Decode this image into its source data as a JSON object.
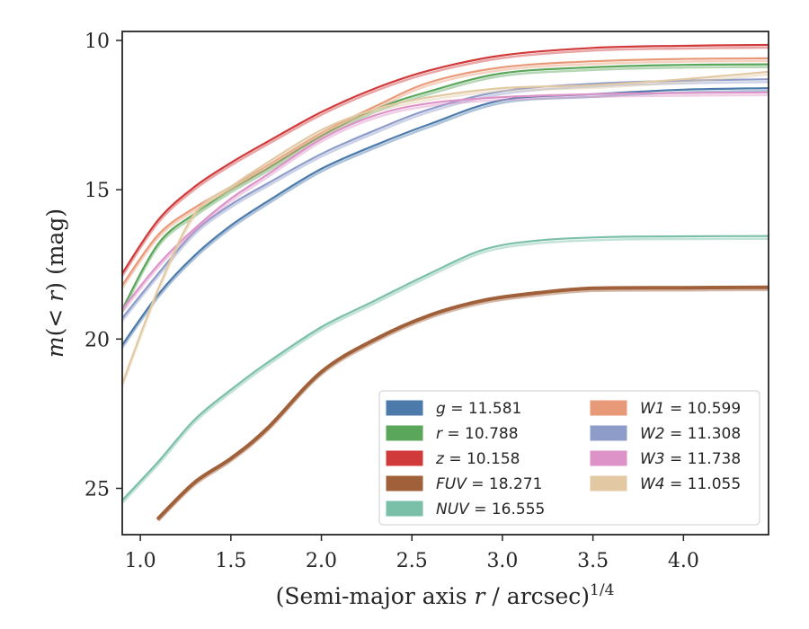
{
  "chart_data": {
    "type": "line",
    "xlabel": "(Semi-major axis r / arcsec)^1/4",
    "ylabel": "m(< r) (mag)",
    "xlim": [
      0.9,
      4.47
    ],
    "ylim": [
      26.55,
      9.7
    ],
    "y_inverted": true,
    "x_ticks": [
      "1.0",
      "1.5",
      "2.0",
      "2.5",
      "3.0",
      "3.5",
      "4.0"
    ],
    "x_tick_values": [
      1.0,
      1.5,
      2.0,
      2.5,
      3.0,
      3.5,
      4.0
    ],
    "y_ticks": [
      "10",
      "15",
      "20",
      "25"
    ],
    "y_tick_values": [
      10,
      15,
      20,
      25
    ],
    "grid": false,
    "legend_position": "lower-right",
    "legend_columns": 2,
    "series": [
      {
        "name": "g = 11.581",
        "label_var": "g",
        "label_value": "11.581",
        "color": "#4c7bab",
        "x": [
          0.9,
          1.1,
          1.3,
          1.5,
          1.7,
          2.0,
          2.3,
          2.6,
          3.0,
          3.5,
          4.0,
          4.47
        ],
        "y": [
          20.2,
          18.5,
          17.2,
          16.2,
          15.4,
          14.3,
          13.5,
          12.8,
          12.0,
          11.8,
          11.65,
          11.6
        ]
      },
      {
        "name": "r = 10.788",
        "label_var": "r",
        "label_value": "10.788",
        "color": "#5aa65a",
        "x": [
          0.9,
          1.1,
          1.3,
          1.5,
          1.7,
          2.0,
          2.3,
          2.6,
          3.0,
          3.5,
          4.0,
          4.47
        ],
        "y": [
          19.0,
          16.8,
          15.8,
          15.0,
          14.3,
          13.2,
          12.3,
          11.7,
          11.1,
          10.9,
          10.82,
          10.8
        ]
      },
      {
        "name": "z = 10.158",
        "label_var": "z",
        "label_value": "10.158",
        "color": "#d03a3a",
        "x": [
          0.9,
          1.1,
          1.3,
          1.5,
          1.7,
          2.0,
          2.3,
          2.6,
          3.0,
          3.5,
          4.0,
          4.47
        ],
        "y": [
          17.8,
          16.0,
          14.9,
          14.1,
          13.4,
          12.4,
          11.6,
          11.0,
          10.5,
          10.25,
          10.18,
          10.15
        ]
      },
      {
        "name": "FUV = 18.271",
        "label_var": "FUV",
        "label_value": "18.271",
        "color": "#a0603a",
        "x": [
          1.1,
          1.3,
          1.5,
          1.7,
          2.0,
          2.3,
          2.6,
          2.9,
          3.2,
          3.5,
          4.0,
          4.47
        ],
        "y": [
          26.0,
          24.8,
          24.0,
          23.0,
          21.1,
          20.0,
          19.2,
          18.7,
          18.45,
          18.3,
          18.28,
          18.27
        ]
      },
      {
        "name": "NUV = 16.555",
        "label_var": "NUV",
        "label_value": "16.555",
        "color": "#7abfa8",
        "x": [
          0.9,
          1.1,
          1.3,
          1.5,
          1.7,
          2.0,
          2.3,
          2.6,
          2.9,
          3.2,
          3.6,
          4.0,
          4.47
        ],
        "y": [
          25.4,
          24.1,
          22.7,
          21.7,
          20.8,
          19.6,
          18.7,
          17.8,
          17.0,
          16.7,
          16.58,
          16.56,
          16.55
        ]
      },
      {
        "name": "W1 = 10.599",
        "label_var": "W1",
        "label_value": "10.599",
        "color": "#e89a78",
        "x": [
          0.9,
          1.1,
          1.3,
          1.5,
          1.7,
          2.0,
          2.3,
          2.6,
          3.0,
          3.5,
          4.0,
          4.47
        ],
        "y": [
          18.2,
          16.5,
          15.6,
          14.9,
          14.2,
          13.1,
          12.2,
          11.4,
          10.9,
          10.7,
          10.62,
          10.6
        ]
      },
      {
        "name": "W2 = 11.308",
        "label_var": "W2",
        "label_value": "11.308",
        "color": "#8e9cc9",
        "x": [
          0.9,
          1.1,
          1.3,
          1.5,
          1.7,
          2.0,
          2.3,
          2.6,
          3.0,
          3.5,
          4.0,
          4.47
        ],
        "y": [
          19.3,
          17.8,
          16.4,
          15.5,
          14.8,
          13.8,
          13.0,
          12.3,
          11.7,
          11.45,
          11.35,
          11.3
        ]
      },
      {
        "name": "W3 = 11.738",
        "label_var": "W3",
        "label_value": "11.738",
        "color": "#de93c8",
        "x": [
          0.9,
          1.1,
          1.3,
          1.5,
          1.7,
          2.0,
          2.3,
          2.6,
          3.0,
          3.5,
          4.0,
          4.47
        ],
        "y": [
          19.0,
          17.5,
          16.3,
          15.3,
          14.5,
          13.3,
          12.5,
          12.1,
          11.9,
          11.8,
          11.76,
          11.74
        ]
      },
      {
        "name": "W4 = 11.055",
        "label_var": "W4",
        "label_value": "11.055",
        "color": "#e2c9a3",
        "x": [
          0.9,
          1.1,
          1.3,
          1.5,
          1.7,
          2.0,
          2.3,
          2.6,
          3.0,
          3.5,
          4.0,
          4.47
        ],
        "y": [
          21.5,
          18.3,
          15.8,
          14.9,
          14.1,
          13.0,
          12.3,
          11.9,
          11.6,
          11.5,
          11.3,
          11.05
        ]
      }
    ]
  }
}
